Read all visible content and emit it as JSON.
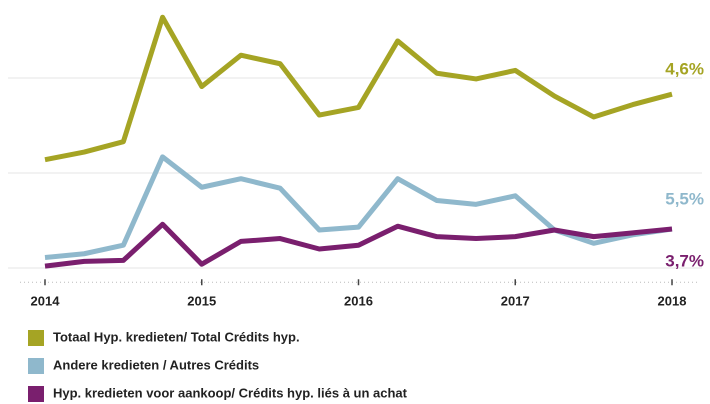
{
  "chart_data": {
    "type": "line",
    "x": [
      2014,
      2014.25,
      2014.5,
      2014.75,
      2015,
      2015.25,
      2015.5,
      2015.75,
      2016,
      2016.25,
      2016.5,
      2016.75,
      2017,
      2017.25,
      2017.5,
      2017.75,
      2018
    ],
    "xlim": [
      2014,
      2018
    ],
    "xticks": [
      2014,
      2015,
      2016,
      2017,
      2018
    ],
    "ylim": [
      -0.15,
      2.7
    ],
    "yticks": [
      0,
      1,
      2
    ],
    "grid": true,
    "series": [
      {
        "name": "Totaal Hyp. kredieten/ Total Crédits hyp.",
        "color": "#a5a424",
        "label": "4,6%",
        "values": [
          1.14,
          1.22,
          1.33,
          2.64,
          1.91,
          2.24,
          2.15,
          1.61,
          1.69,
          2.39,
          2.05,
          1.99,
          2.08,
          1.81,
          1.59,
          1.72,
          1.83
        ]
      },
      {
        "name": "Andere kredieten / Autres Crédits",
        "color": "#8fb8cc",
        "label": "5,5%",
        "values": [
          0.11,
          0.15,
          0.24,
          1.17,
          0.85,
          0.94,
          0.84,
          0.4,
          0.43,
          0.94,
          0.71,
          0.67,
          0.76,
          0.4,
          0.26,
          0.35,
          0.41
        ]
      },
      {
        "name": "Hyp. kredieten voor aankoop/ Crédits hyp. liés à un achat",
        "color": "#7a1f6e",
        "label": "3,7%",
        "values": [
          0.02,
          0.07,
          0.08,
          0.46,
          0.04,
          0.28,
          0.31,
          0.2,
          0.24,
          0.44,
          0.33,
          0.31,
          0.33,
          0.4,
          0.33,
          0.37,
          0.41
        ]
      }
    ]
  }
}
